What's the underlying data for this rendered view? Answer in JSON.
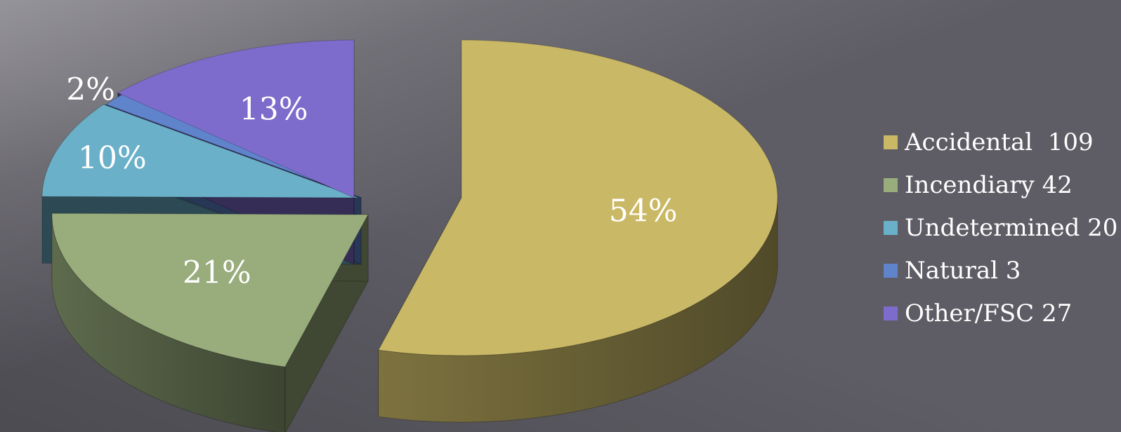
{
  "chart_data": {
    "type": "pie",
    "style": "3d-exploded",
    "title": "",
    "slices": [
      {
        "label": "Accidental",
        "legend": "Accidental  109",
        "value": 109,
        "percent_label": "54%",
        "color": "#c9b866"
      },
      {
        "label": "Incendiary",
        "legend": "Incendiary 42",
        "value": 42,
        "percent_label": "21%",
        "color": "#98ac7c"
      },
      {
        "label": "Undetermined",
        "legend": "Undetermined 20",
        "value": 20,
        "percent_label": "10%",
        "color": "#6ab0c8"
      },
      {
        "label": "Natural",
        "legend": "Natural 3",
        "value": 3,
        "percent_label": "2%",
        "color": "#5f84cc"
      },
      {
        "label": "Other/FSC",
        "legend": "Other/FSC 27",
        "value": 27,
        "percent_label": "13%",
        "color": "#7e6ccc"
      }
    ],
    "legend_position": "right"
  }
}
